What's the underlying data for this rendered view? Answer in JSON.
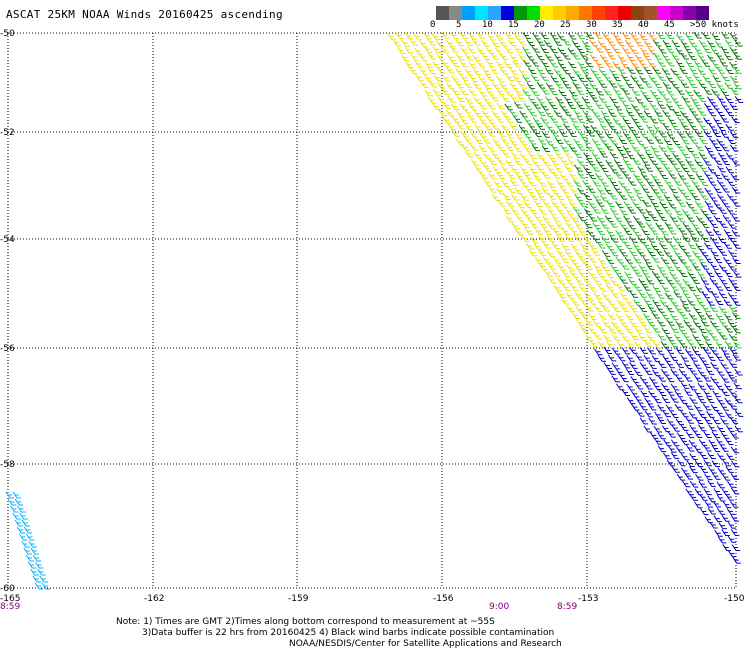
{
  "title": "ASCAT 25KM NOAA Winds 20160425 ascending",
  "colorbar": {
    "labels": [
      "0",
      "5",
      "10",
      "15",
      "20",
      "25",
      "30",
      "35",
      "40",
      "45",
      ">50 knots"
    ],
    "colors": [
      "#555555",
      "#888888",
      "#00a0ff",
      "#00e5ff",
      "#2ba6ff",
      "#0000dd",
      "#009900",
      "#00dd00",
      "#ffee00",
      "#ffcc00",
      "#ffaa00",
      "#ff7700",
      "#ff4400",
      "#ff2222",
      "#ee0000",
      "#8b4513",
      "#a0522d",
      "#ff00ff",
      "#cc00cc",
      "#8800aa",
      "#550088"
    ]
  },
  "axes": {
    "lat_labels": [
      "-50",
      "-52",
      "-54",
      "-56",
      "-58",
      "-60"
    ],
    "lon_labels": [
      "-165",
      "-162",
      "-159",
      "-156",
      "-153",
      "-150"
    ]
  },
  "time_labels": [
    "8:59",
    "9:00",
    "8:59"
  ],
  "notes": {
    "line1": "Note: 1) Times are GMT 2)Times along bottom correspond to measurement at ~55S",
    "line2": "3)Data buffer is 22 hrs from 20160425 4) Black wind barbs indicate possible contamination",
    "line3": "NOAA/NESDIS/Center for Satellite Applications and Research"
  },
  "wind_colors": {
    "yellow": "#f0e000",
    "orange": "#ff8800",
    "green_dark": "#007700",
    "green_light": "#22cc22",
    "blue": "#0000cc",
    "cyan": "#00b0ff"
  }
}
